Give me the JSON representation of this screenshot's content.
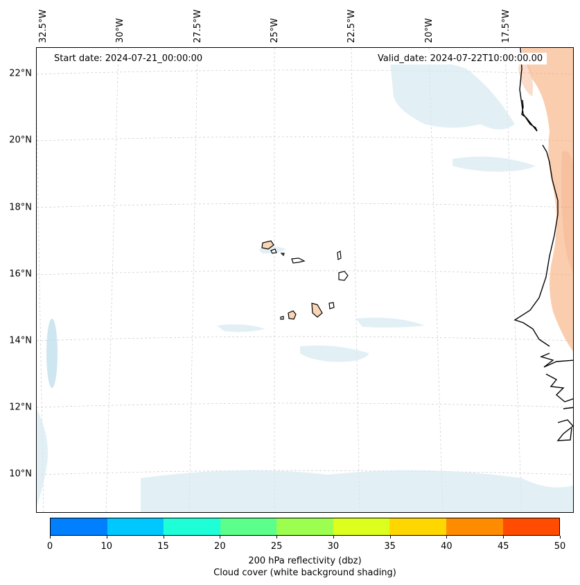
{
  "map": {
    "start_date": "Start date: 2024-07-21_00:00:00",
    "valid_date": "Valid_date: 2024-07-22T10:00:00.00",
    "longitude_labels": [
      "32.5°W",
      "30°W",
      "27.5°W",
      "25°W",
      "22.5°W",
      "20°W",
      "17.5°W"
    ],
    "latitude_labels": [
      "22°N",
      "20°N",
      "18°N",
      "16°N",
      "14°N",
      "12°N",
      "10°N"
    ],
    "colors": {
      "land_island": "#f9d5b5",
      "coast": "#000000",
      "cloud": "#d6eaf2",
      "reflectivity": "#f6a66e",
      "gridline": "#bbbbbb"
    }
  },
  "colorbar": {
    "ticks": [
      "0",
      "10",
      "15",
      "20",
      "25",
      "30",
      "35",
      "40",
      "45",
      "50"
    ],
    "colors": [
      "#0080ff",
      "#00c8ff",
      "#1effd8",
      "#5cff8c",
      "#9cff50",
      "#dcff1e",
      "#ffd700",
      "#ff8c00",
      "#ff4c00"
    ],
    "label_line1": "200 hPa reflectivity (dbz)",
    "label_line2": "Cloud cover (white background shading)"
  }
}
